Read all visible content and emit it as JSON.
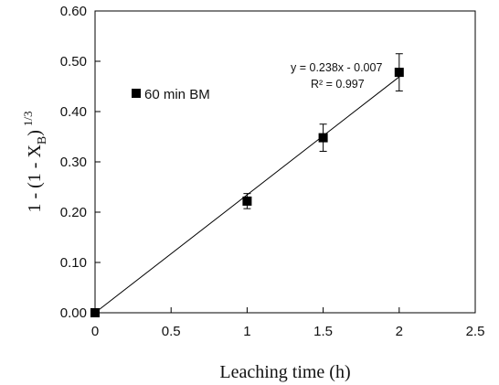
{
  "chart_data": {
    "type": "scatter",
    "x": [
      0,
      1,
      1.5,
      2
    ],
    "series": [
      {
        "name": "60 min BM",
        "values": [
          0.0,
          0.222,
          0.348,
          0.478
        ],
        "error": [
          0.0,
          0.015,
          0.027,
          0.037
        ],
        "marker": "square",
        "color": "#000000"
      }
    ],
    "fit": {
      "slope": 0.238,
      "intercept": -0.007,
      "equation": "y = 0.238x - 0.007",
      "r2_label": "R² = 0.997"
    },
    "xlabel": "Leaching time (h)",
    "ylabel": {
      "main": "1 - (1 - X",
      "sub": "B",
      "close": ")",
      "sup": "1/3"
    },
    "xlim": [
      0,
      2.5
    ],
    "ylim": [
      0,
      0.6
    ],
    "xticks": [
      "0",
      "0.5",
      "1",
      "1.5",
      "2",
      "2.5"
    ],
    "yticks": [
      "0.00",
      "0.10",
      "0.20",
      "0.30",
      "0.40",
      "0.50",
      "0.60"
    ],
    "grid": false,
    "legend_position": "upper-left"
  }
}
